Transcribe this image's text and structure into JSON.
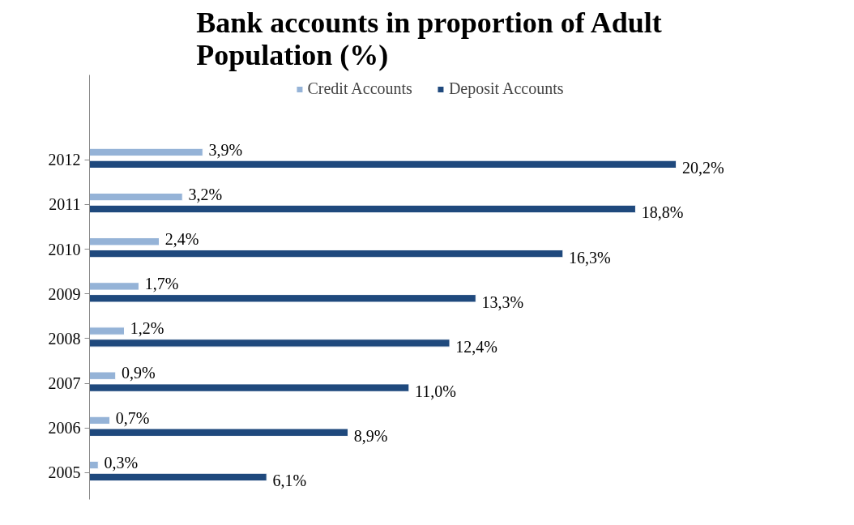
{
  "chart_data": {
    "type": "bar",
    "orientation": "horizontal",
    "title": "Bank accounts in proportion of Adult Population (%)",
    "categories": [
      "2012",
      "2011",
      "2010",
      "2009",
      "2008",
      "2007",
      "2006",
      "2005"
    ],
    "series": [
      {
        "name": "Credit Accounts",
        "color": "#95b3d7",
        "values": [
          3.9,
          3.2,
          2.4,
          1.7,
          1.2,
          0.9,
          0.7,
          0.3
        ],
        "value_labels": [
          "3,9%",
          "3,2%",
          "2,4%",
          "1,7%",
          "1,2%",
          "0,9%",
          "0,7%",
          "0,3%"
        ]
      },
      {
        "name": "Deposit Accounts",
        "color": "#1f497d",
        "values": [
          20.2,
          18.8,
          16.3,
          13.3,
          12.4,
          11.0,
          8.9,
          6.1
        ],
        "value_labels": [
          "20,2%",
          "18,8%",
          "16,3%",
          "13,3%",
          "12,4%",
          "11,0%",
          "8,9%",
          "6,1%"
        ]
      }
    ],
    "legend": "top",
    "grid": false
  }
}
